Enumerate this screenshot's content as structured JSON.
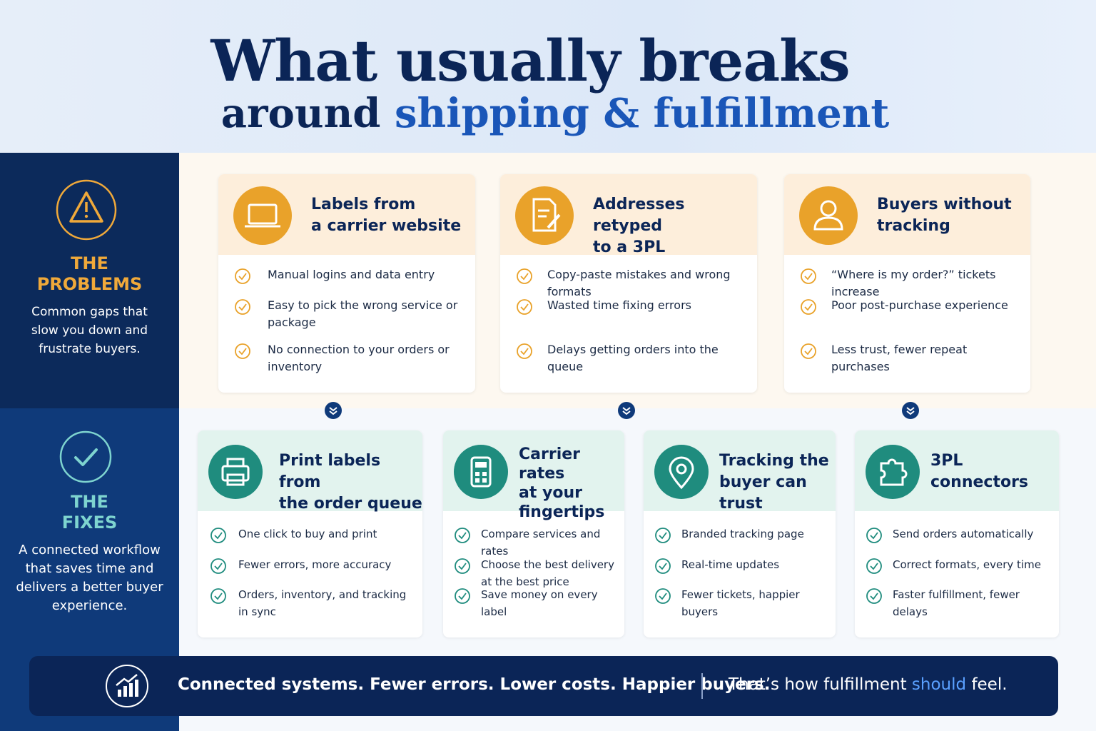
{
  "header": {
    "title": "What usually breaks",
    "subtitle_lead": "around",
    "subtitle_highlight": "shipping & fulfillment"
  },
  "problems": {
    "heading": [
      "THE",
      "PROBLEMS"
    ],
    "description": "Common gaps that slow you down and frustrate buyers.",
    "cards": [
      {
        "title": [
          "Labels from",
          "a carrier website"
        ],
        "items": [
          "Manual logins and data entry",
          "Easy to pick the wrong service or package",
          "No connection to your orders or inventory"
        ]
      },
      {
        "title": [
          "Addresses retyped",
          "to a 3PL"
        ],
        "items": [
          "Copy-paste mistakes and wrong formats",
          "Wasted time fixing errors",
          "Delays getting orders into the queue"
        ]
      },
      {
        "title": [
          "Buyers without",
          "tracking"
        ],
        "items": [
          "“Where is my order?” tickets increase",
          "Poor post-purchase experience",
          "Less trust, fewer repeat purchases"
        ]
      }
    ]
  },
  "fixes": {
    "heading": [
      "THE",
      "FIXES"
    ],
    "description": "A connected workflow that saves time and delivers a better buyer experience.",
    "cards": [
      {
        "title": [
          "Print labels from",
          "the order queue"
        ],
        "items": [
          "One click to buy and print",
          "Fewer errors, more accuracy",
          "Orders, inventory, and tracking in sync"
        ]
      },
      {
        "title": [
          "Carrier rates",
          "at your",
          "fingertips"
        ],
        "items": [
          "Compare services and rates",
          "Choose the best delivery at the best price",
          "Save money on every label"
        ]
      },
      {
        "title": [
          "Tracking the",
          "buyer can trust"
        ],
        "items": [
          "Branded tracking page",
          "Real-time updates",
          "Fewer tickets, happier buyers"
        ]
      },
      {
        "title": [
          "3PL",
          "connectors"
        ],
        "items": [
          "Send orders automatically",
          "Correct formats, every time",
          "Faster fulfillment, fewer delays"
        ]
      }
    ]
  },
  "footer": {
    "tagline": "Connected systems. Fewer errors. Lower costs. Happier buyers.",
    "closing": [
      "That’s how fulfillment",
      "should",
      "feel."
    ]
  }
}
